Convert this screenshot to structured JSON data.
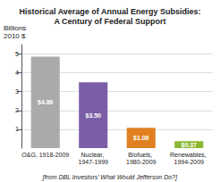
{
  "chart_data": {
    "type": "bar",
    "title": "Historical Average of Annual Energy Subsidies:\nA Century of Federal Support",
    "ylabel": "Billions\n2010 $",
    "annotations": [
      "[from DBL Investors’ What Would Jefferson Do?]"
    ],
    "categories": [
      "O&G, 1918-2009",
      "Nuclear, 1947-1999",
      "Biofuels, 1980-2009",
      "Renewables, 1994-2009"
    ],
    "values": [
      4.86,
      3.5,
      1.08,
      0.37
    ],
    "value_labels": [
      "$4.86",
      "$3.50",
      "$1.08",
      "$0.37"
    ],
    "data_labels": true,
    "colors": [
      "#aaaaaa",
      "#7b5ea7",
      "#e08020",
      "#8ab830"
    ],
    "ylim": [
      0,
      5.5
    ],
    "yticks": [
      1,
      2,
      3,
      4,
      5
    ],
    "grid": true
  }
}
